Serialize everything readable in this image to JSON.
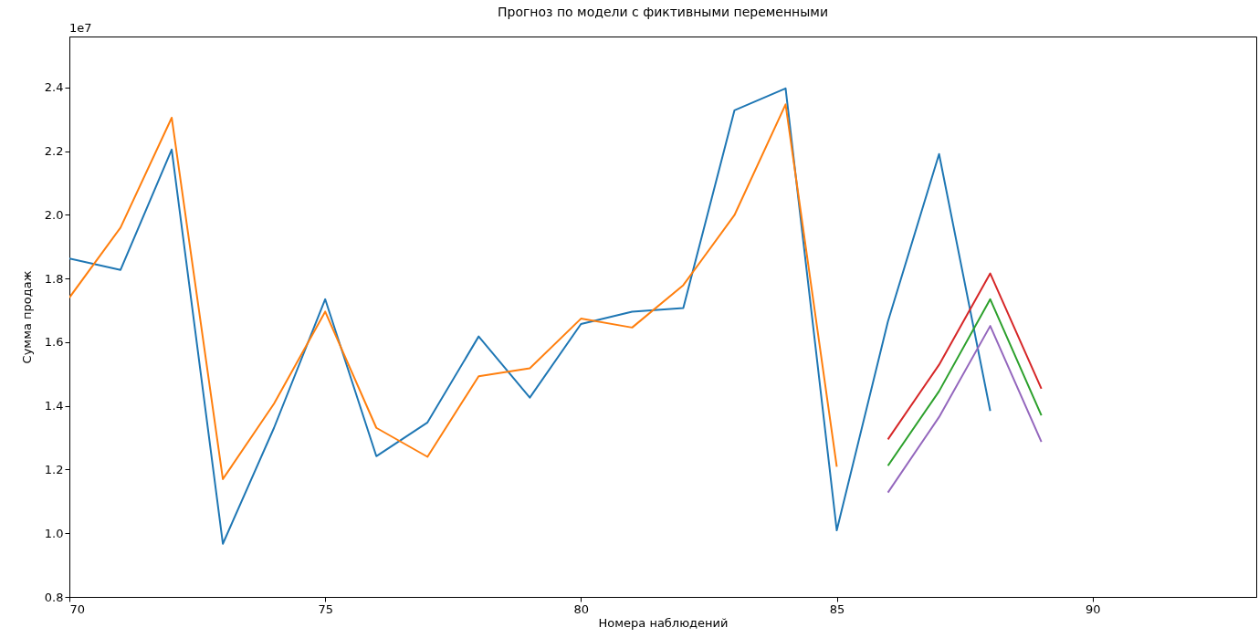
{
  "chart_data": {
    "type": "line",
    "title": "Прогноз по модели с фиктивными переменными",
    "xlabel": "Номера наблюдений",
    "ylabel": "Сумма продаж",
    "annotations": [
      "1e7"
    ],
    "xlim": [
      70,
      93.2
    ],
    "xticks": [
      70,
      75,
      80,
      85,
      90
    ],
    "ylim": [
      0.8,
      2.56
    ],
    "yticks": [
      0.8,
      {
        "value": 1.0,
        "label": "1.0"
      },
      1.2,
      1.4,
      1.6,
      1.8,
      {
        "value": 2.0,
        "label": "2.0"
      },
      2.2,
      2.4
    ],
    "grid": false,
    "legend": false,
    "series": [
      {
        "color": "#1f77b4",
        "x": [
          70,
          71,
          72,
          73,
          74,
          75,
          76,
          77,
          78,
          79,
          80,
          81,
          82,
          83,
          84,
          85,
          86,
          87,
          88
        ],
        "values": [
          1.863,
          1.827,
          2.205,
          0.967,
          1.331,
          1.735,
          1.242,
          1.348,
          1.618,
          1.426,
          1.657,
          1.696,
          1.707,
          2.328,
          2.397,
          1.009,
          1.665,
          2.191,
          1.384
        ]
      },
      {
        "color": "#ff7f0e",
        "x": [
          70,
          71,
          72,
          73,
          74,
          75,
          76,
          77,
          78,
          79,
          80,
          81,
          82,
          83,
          84,
          85
        ],
        "values": [
          1.74,
          1.96,
          2.305,
          1.17,
          1.407,
          1.696,
          1.331,
          1.24,
          1.493,
          1.518,
          1.674,
          1.646,
          1.779,
          1.999,
          2.347,
          1.209
        ]
      },
      {
        "color": "#d62728",
        "x": [
          86,
          87,
          88,
          89
        ],
        "values": [
          1.295,
          1.529,
          1.816,
          1.454
        ]
      },
      {
        "color": "#2ca02c",
        "x": [
          86,
          87,
          88,
          89
        ],
        "values": [
          1.212,
          1.446,
          1.735,
          1.37
        ]
      },
      {
        "color": "#9467bd",
        "x": [
          86,
          87,
          88,
          89
        ],
        "values": [
          1.128,
          1.365,
          1.651,
          1.287
        ]
      }
    ]
  }
}
